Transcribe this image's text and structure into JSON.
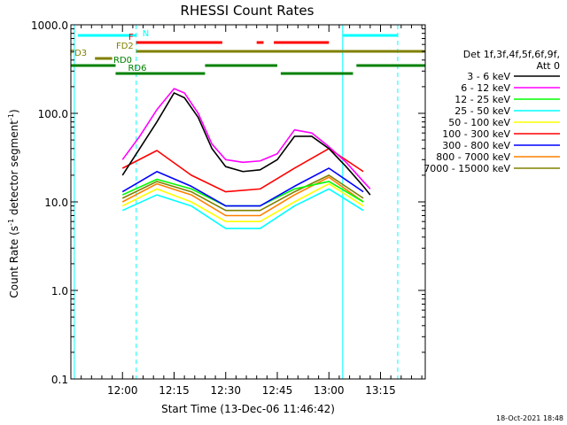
{
  "chart_data": {
    "type": "line",
    "title": "RHESSI Count Rates",
    "xlabel": "Start Time (13-Dec-06 11:46:42)",
    "ylabel": "Count Rate (s",
    "ylabel_sup": "-1",
    "ylabel_tail": " detector segment",
    "ylabel_close": ")",
    "yscale": "log",
    "ylim": [
      0.1,
      1000.0
    ],
    "xlim_minutes": [
      -15,
      88
    ],
    "x_tick_labels": [
      "12:00",
      "12:15",
      "12:30",
      "12:45",
      "13:00",
      "13:15"
    ],
    "x_tick_minutes": [
      0,
      15,
      30,
      45,
      60,
      75
    ],
    "y_tick_labels": [
      "0.1",
      "1.0",
      "10.0",
      "100.0",
      "1000.0"
    ],
    "y_tick_values": [
      0.1,
      1,
      10,
      100,
      1000
    ],
    "legend_header": [
      "Det 1f,3f,4f,5f,6f,9f,",
      "Att 0"
    ],
    "series": [
      {
        "name": "3 - 6 keV",
        "color": "#000000",
        "values_minutes": [
          0,
          5,
          10,
          15,
          18,
          22,
          26,
          30,
          35,
          40,
          45,
          50,
          55,
          60,
          65,
          70,
          72
        ],
        "values": [
          20,
          40,
          80,
          170,
          150,
          90,
          40,
          25,
          22,
          23,
          30,
          55,
          55,
          40,
          25,
          15,
          12
        ]
      },
      {
        "name": "6 - 12 keV",
        "color": "#ff00ff",
        "values_minutes": [
          0,
          5,
          10,
          15,
          18,
          22,
          26,
          30,
          35,
          40,
          45,
          50,
          55,
          60,
          65,
          70,
          72
        ],
        "values": [
          30,
          55,
          110,
          190,
          170,
          100,
          45,
          30,
          28,
          29,
          35,
          65,
          60,
          42,
          28,
          17,
          14
        ]
      },
      {
        "name": "12 - 25 keV",
        "color": "#00ff00",
        "values_minutes": [
          0,
          10,
          20,
          30,
          40,
          50,
          60,
          70
        ],
        "values": [
          12,
          18,
          14,
          9,
          9,
          14,
          17,
          10
        ]
      },
      {
        "name": "25 - 50 keV",
        "color": "#00ffff",
        "values_minutes": [
          0,
          10,
          20,
          30,
          40,
          50,
          60,
          70
        ],
        "values": [
          8,
          12,
          9,
          5,
          5,
          9,
          14,
          8
        ]
      },
      {
        "name": "50 - 100 keV",
        "color": "#ffff00",
        "values_minutes": [
          0,
          10,
          20,
          30,
          40,
          50,
          60,
          70
        ],
        "values": [
          9,
          14,
          10,
          6,
          6,
          10,
          16,
          9
        ]
      },
      {
        "name": "100 - 300 keV",
        "color": "#ff0000",
        "values_minutes": [
          0,
          10,
          20,
          30,
          40,
          50,
          60,
          70
        ],
        "values": [
          24,
          38,
          20,
          13,
          14,
          24,
          40,
          22
        ]
      },
      {
        "name": "300 - 800 keV",
        "color": "#0000ff",
        "values_minutes": [
          0,
          10,
          20,
          30,
          40,
          50,
          60,
          70
        ],
        "values": [
          13,
          22,
          15,
          9,
          9,
          15,
          24,
          13
        ]
      },
      {
        "name": "800 - 7000 keV",
        "color": "#ff8000",
        "values_minutes": [
          0,
          10,
          20,
          30,
          40,
          50,
          60,
          70
        ],
        "values": [
          10,
          16,
          12,
          7,
          7,
          12,
          19,
          10
        ]
      },
      {
        "name": "7000 - 15000 keV",
        "color": "#808000",
        "values_minutes": [
          0,
          10,
          20,
          30,
          40,
          50,
          60,
          70
        ],
        "values": [
          11,
          17,
          13,
          8,
          8,
          13,
          20,
          11
        ]
      }
    ],
    "flag_bars": [
      {
        "label": "N",
        "color": "#00ffff",
        "segments_minutes": [
          [
            -13,
            4
          ],
          [
            64,
            80
          ]
        ]
      },
      {
        "label": "F",
        "color": "#ff0000",
        "segments_minutes": [
          [
            4,
            29
          ],
          [
            39,
            41
          ],
          [
            44,
            60
          ]
        ]
      },
      {
        "label": "FD2",
        "color": "#808000",
        "segments_minutes": [
          [
            4,
            88
          ]
        ]
      },
      {
        "label": "FD3",
        "color": "#808000",
        "segments_minutes": [
          [
            -8,
            -3
          ]
        ]
      },
      {
        "label": "RD0",
        "color": "#008000",
        "segments_minutes": [
          [
            -15,
            -2
          ],
          [
            24,
            45
          ],
          [
            68,
            88
          ]
        ]
      },
      {
        "label": "RD6",
        "color": "#008000",
        "segments_minutes": [
          [
            -2,
            24
          ],
          [
            46,
            67
          ]
        ]
      }
    ],
    "vlines_solid_minutes": [
      -14,
      64
    ],
    "vlines_dashed_minutes": [
      4,
      80
    ],
    "vline_color": "#00ffff"
  },
  "footer_timestamp": "18-Oct-2021 18:48"
}
